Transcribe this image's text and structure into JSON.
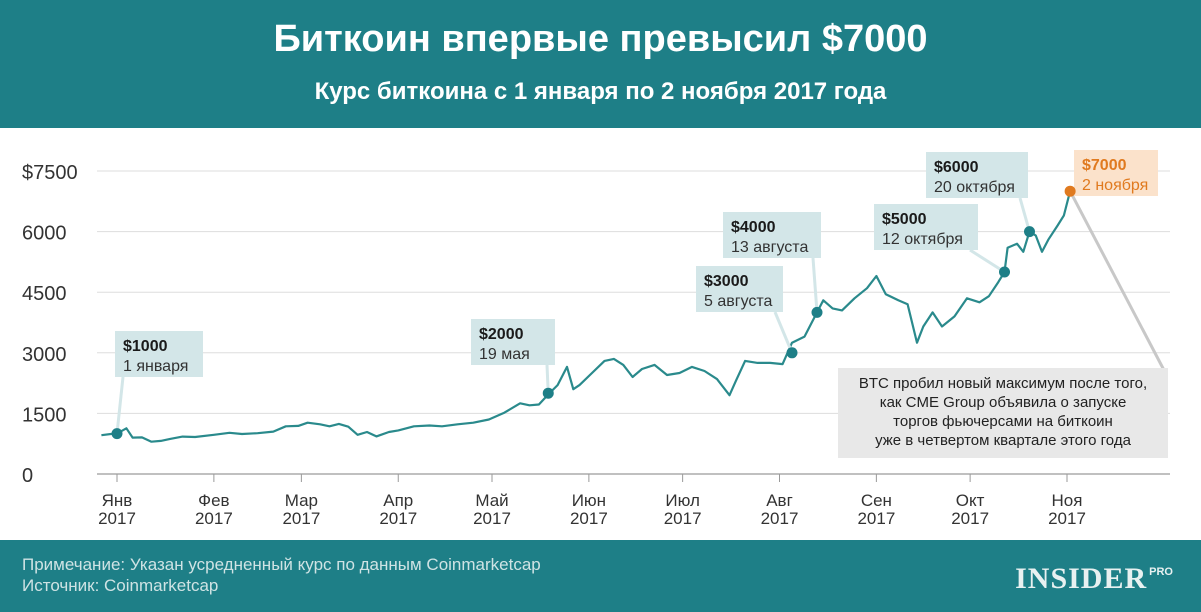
{
  "header": {
    "title": "Биткоин впервые превысил $7000",
    "subtitle": "Курс биткоина с 1 января по 2 ноября 2017 года"
  },
  "footer": {
    "note": "Примечание: Указан усредненный курс по данным Coinmarketcap",
    "source": "Источник: Coinmarketcap",
    "brand": "INSIDER",
    "brand_suffix": "PRO"
  },
  "colors": {
    "header_bg": "#1e7f87",
    "line": "#2a8a8c",
    "marker": "#1e7f87",
    "highlight": "#e07a1f",
    "callout_bg": "#d3e6e8",
    "highlight_bg": "#fbe2cb"
  },
  "chart_data": {
    "type": "line",
    "title": "Биткоин впервые превысил $7000",
    "subtitle": "Курс биткоина с 1 января по 2 ноября 2017 года",
    "xlabel": "",
    "ylabel": "",
    "ylim": [
      0,
      7500
    ],
    "grid": true,
    "y_ticks": [
      "0",
      "1500",
      "3000",
      "4500",
      "6000",
      "$7500"
    ],
    "x_ticks": [
      {
        "date": "2017-01-01",
        "label": [
          "Янв",
          "2017"
        ]
      },
      {
        "date": "2017-02-01",
        "label": [
          "Фев",
          "2017"
        ]
      },
      {
        "date": "2017-03-01",
        "label": [
          "Мар",
          "2017"
        ]
      },
      {
        "date": "2017-04-01",
        "label": [
          "Апр",
          "2017"
        ]
      },
      {
        "date": "2017-05-01",
        "label": [
          "Май",
          "2017"
        ]
      },
      {
        "date": "2017-06-01",
        "label": [
          "Июн",
          "2017"
        ]
      },
      {
        "date": "2017-07-01",
        "label": [
          "Июл",
          "2017"
        ]
      },
      {
        "date": "2017-08-01",
        "label": [
          "Авг",
          "2017"
        ]
      },
      {
        "date": "2017-09-01",
        "label": [
          "Сен",
          "2017"
        ]
      },
      {
        "date": "2017-10-01",
        "label": [
          "Окт",
          "2017"
        ]
      },
      {
        "date": "2017-11-01",
        "label": [
          "Ноя",
          "2017"
        ]
      }
    ],
    "series": [
      {
        "points": [
          [
            "2016-12-27",
            960
          ],
          [
            "2016-12-31",
            1000
          ],
          [
            "2017-01-01",
            1000
          ],
          [
            "2017-01-04",
            1130
          ],
          [
            "2017-01-06",
            900
          ],
          [
            "2017-01-09",
            905
          ],
          [
            "2017-01-12",
            800
          ],
          [
            "2017-01-15",
            820
          ],
          [
            "2017-01-18",
            870
          ],
          [
            "2017-01-22",
            925
          ],
          [
            "2017-01-26",
            915
          ],
          [
            "2017-02-01",
            970
          ],
          [
            "2017-02-06",
            1020
          ],
          [
            "2017-02-10",
            990
          ],
          [
            "2017-02-15",
            1010
          ],
          [
            "2017-02-20",
            1050
          ],
          [
            "2017-02-24",
            1180
          ],
          [
            "2017-02-28",
            1190
          ],
          [
            "2017-03-03",
            1270
          ],
          [
            "2017-03-07",
            1230
          ],
          [
            "2017-03-10",
            1180
          ],
          [
            "2017-03-13",
            1240
          ],
          [
            "2017-03-16",
            1170
          ],
          [
            "2017-03-19",
            970
          ],
          [
            "2017-03-22",
            1040
          ],
          [
            "2017-03-25",
            930
          ],
          [
            "2017-03-29",
            1040
          ],
          [
            "2017-04-01",
            1080
          ],
          [
            "2017-04-06",
            1180
          ],
          [
            "2017-04-11",
            1200
          ],
          [
            "2017-04-15",
            1180
          ],
          [
            "2017-04-20",
            1230
          ],
          [
            "2017-04-25",
            1270
          ],
          [
            "2017-04-30",
            1350
          ],
          [
            "2017-05-05",
            1520
          ],
          [
            "2017-05-10",
            1750
          ],
          [
            "2017-05-13",
            1700
          ],
          [
            "2017-05-16",
            1720
          ],
          [
            "2017-05-19",
            1970
          ],
          [
            "2017-05-22",
            2200
          ],
          [
            "2017-05-25",
            2650
          ],
          [
            "2017-05-27",
            2100
          ],
          [
            "2017-05-29",
            2200
          ],
          [
            "2017-06-02",
            2500
          ],
          [
            "2017-06-06",
            2800
          ],
          [
            "2017-06-09",
            2850
          ],
          [
            "2017-06-12",
            2700
          ],
          [
            "2017-06-15",
            2400
          ],
          [
            "2017-06-18",
            2600
          ],
          [
            "2017-06-22",
            2700
          ],
          [
            "2017-06-26",
            2450
          ],
          [
            "2017-06-30",
            2500
          ],
          [
            "2017-07-04",
            2650
          ],
          [
            "2017-07-08",
            2550
          ],
          [
            "2017-07-12",
            2350
          ],
          [
            "2017-07-16",
            1950
          ],
          [
            "2017-07-18",
            2300
          ],
          [
            "2017-07-21",
            2800
          ],
          [
            "2017-07-25",
            2750
          ],
          [
            "2017-07-29",
            2750
          ],
          [
            "2017-08-02",
            2720
          ],
          [
            "2017-08-05",
            3250
          ],
          [
            "2017-08-09",
            3400
          ],
          [
            "2017-08-13",
            4000
          ],
          [
            "2017-08-15",
            4300
          ],
          [
            "2017-08-18",
            4100
          ],
          [
            "2017-08-21",
            4050
          ],
          [
            "2017-08-25",
            4350
          ],
          [
            "2017-08-29",
            4600
          ],
          [
            "2017-09-01",
            4900
          ],
          [
            "2017-09-04",
            4450
          ],
          [
            "2017-09-08",
            4300
          ],
          [
            "2017-09-11",
            4200
          ],
          [
            "2017-09-14",
            3250
          ],
          [
            "2017-09-16",
            3650
          ],
          [
            "2017-09-19",
            4000
          ],
          [
            "2017-09-22",
            3650
          ],
          [
            "2017-09-26",
            3900
          ],
          [
            "2017-09-30",
            4350
          ],
          [
            "2017-10-04",
            4250
          ],
          [
            "2017-10-07",
            4400
          ],
          [
            "2017-10-10",
            4750
          ],
          [
            "2017-10-12",
            5000
          ],
          [
            "2017-10-13",
            5600
          ],
          [
            "2017-10-16",
            5700
          ],
          [
            "2017-10-18",
            5500
          ],
          [
            "2017-10-20",
            6000
          ],
          [
            "2017-10-22",
            5900
          ],
          [
            "2017-10-24",
            5500
          ],
          [
            "2017-10-26",
            5800
          ],
          [
            "2017-10-29",
            6150
          ],
          [
            "2017-10-31",
            6400
          ],
          [
            "2017-11-02",
            7000
          ]
        ]
      }
    ],
    "callouts": [
      {
        "date": "2017-01-01",
        "value": 1000,
        "price": "$1000",
        "label": "1 января",
        "highlight": false
      },
      {
        "date": "2017-05-19",
        "value": 2000,
        "price": "$2000",
        "label": "19 мая",
        "highlight": false
      },
      {
        "date": "2017-08-05",
        "value": 3000,
        "price": "$3000",
        "label": "5 августа",
        "highlight": false
      },
      {
        "date": "2017-08-13",
        "value": 4000,
        "price": "$4000",
        "label": "13 августа",
        "highlight": false
      },
      {
        "date": "2017-10-12",
        "value": 5000,
        "price": "$5000",
        "label": "12 октября",
        "highlight": false
      },
      {
        "date": "2017-10-20",
        "value": 6000,
        "price": "$6000",
        "label": "20 октября",
        "highlight": false
      },
      {
        "date": "2017-11-02",
        "value": 7000,
        "price": "$7000",
        "label": "2 ноября",
        "highlight": true
      }
    ],
    "annotation": {
      "lines": [
        "BTC пробил новый максимум после того,",
        "как CME Group объявила о запуске",
        "торгов фьючерсами на биткоин",
        "уже в четвертом квартале этого года"
      ]
    }
  }
}
